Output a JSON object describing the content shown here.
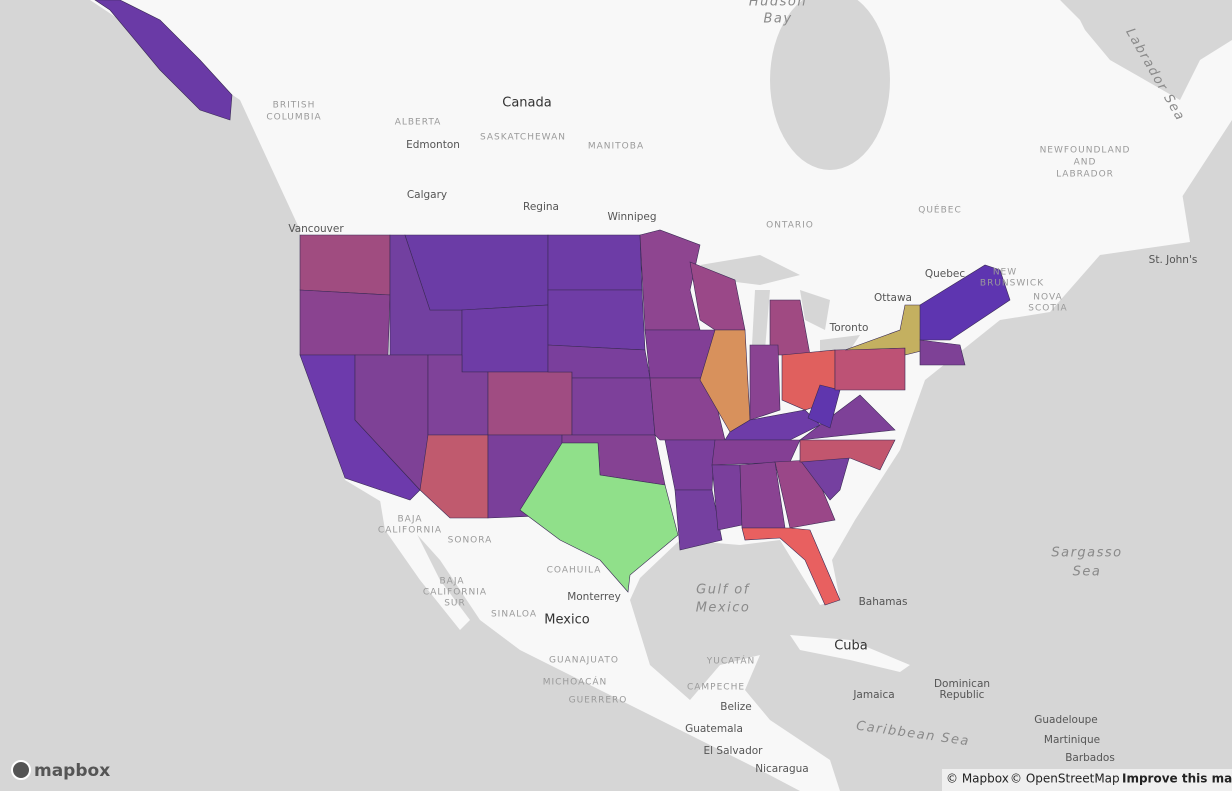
{
  "map": {
    "labels": [
      "Hudson",
      "Bay",
      "Labrador Sea",
      "Canada",
      "BRITISH",
      "COLUMBIA",
      "ALBERTA",
      "SASKATCHEWAN",
      "MANITOBA",
      "Edmonton",
      "Calgary",
      "Regina",
      "Winnipeg",
      "Vancouver",
      "ONTARIO",
      "QUÉBEC",
      "NEWFOUNDLAND",
      "AND",
      "LABRADOR",
      "Quebec",
      "NEW",
      "BRUNSWICK",
      "NOVA",
      "SCOTIA",
      "St. John's",
      "Ottawa",
      "Toronto",
      "BAJA",
      "CALIFORNIA",
      "SONORA",
      "COAHUILA",
      "BAJA",
      "CALIFORNIA",
      "SUR",
      "SINALOA",
      "Monterrey",
      "Mexico",
      "Gulf of",
      "Mexico",
      "Bahamas",
      "Cuba",
      "GUANAJUATO",
      "YUCATÁN",
      "MICHOACÁN",
      "CAMPECHE",
      "GUERRERO",
      "Jamaica",
      "Dominican",
      "Republic",
      "Belize",
      "Guatemala",
      "Caribbean Sea",
      "Guadeloupe",
      "Martinique",
      "Barbados",
      "El Salvador",
      "Nicaragua",
      "Sargasso",
      "Sea"
    ],
    "logo": "mapbox",
    "attribution": [
      "© Mapbox",
      "© OpenStreetMap"
    ],
    "improve": "Improve this map"
  }
}
